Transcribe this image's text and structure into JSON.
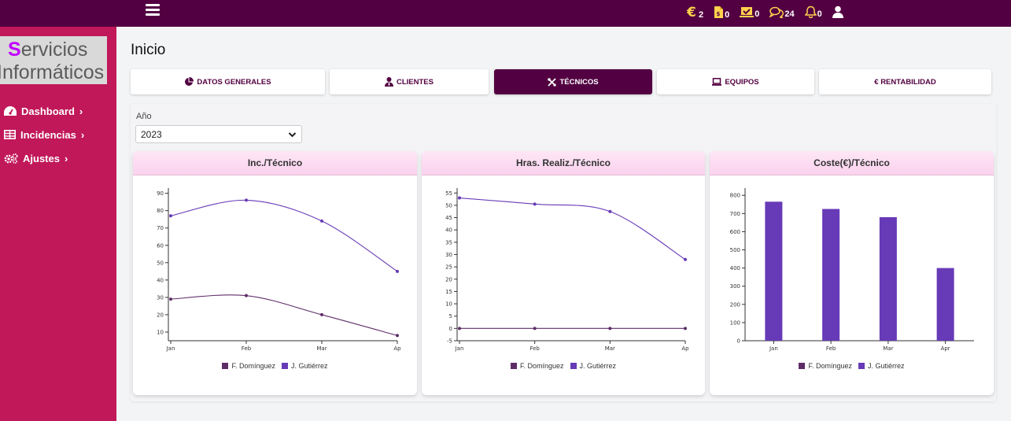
{
  "topbar": {
    "icons": [
      {
        "name": "euro-icon",
        "count": "2"
      },
      {
        "name": "invoice-icon",
        "count": "0"
      },
      {
        "name": "laptop-check-icon",
        "count": "0"
      },
      {
        "name": "comments-icon",
        "count": "24"
      },
      {
        "name": "bell-icon",
        "count": "0"
      },
      {
        "name": "user-icon",
        "count": ""
      }
    ],
    "colors": {
      "background": "#520041",
      "icon": "#ffd34d"
    }
  },
  "logo": {
    "first_letter": "S",
    "line1_rest": "ervicios",
    "line2": "Informáticos"
  },
  "sidebar": {
    "items": [
      {
        "label": "Dashboard",
        "icon": "tachometer-icon"
      },
      {
        "label": "Incidencias",
        "icon": "table-icon"
      },
      {
        "label": "Ajustes",
        "icon": "cogs-icon"
      }
    ],
    "color": "#c1185a"
  },
  "page": {
    "title": "Inicio"
  },
  "tabs": [
    {
      "label": "DATOS GENERALES",
      "icon": "pie-chart-icon",
      "active": false
    },
    {
      "label": "CLIENTES",
      "icon": "user-tie-icon",
      "active": false
    },
    {
      "label": "TÉCNICOS",
      "icon": "tools-icon",
      "active": true
    },
    {
      "label": "EQUIPOS",
      "icon": "laptop-icon",
      "active": false
    },
    {
      "label": "€ RENTABILIDAD",
      "icon": "",
      "active": false
    }
  ],
  "filter": {
    "label": "Año",
    "value": "2023"
  },
  "colors": {
    "series1": "#5e2d68",
    "series2": "#673ab7"
  },
  "chart_data": [
    {
      "type": "line",
      "title": "Inc./Técnico",
      "categories": [
        "Jan",
        "Feb",
        "Mar",
        "Ap"
      ],
      "yticks": [
        10,
        20,
        30,
        40,
        50,
        60,
        70,
        80,
        90
      ],
      "ylim": [
        5,
        93
      ],
      "series": [
        {
          "name": "F. Domínguez",
          "values": [
            29,
            31,
            20,
            8
          ]
        },
        {
          "name": "J. Gutiérrez",
          "values": [
            77,
            86,
            74,
            45
          ]
        }
      ],
      "legend": "bottom"
    },
    {
      "type": "line",
      "title": "Hras. Realiz./Técnico",
      "categories": [
        "Jan",
        "Feb",
        "Mar",
        "Ap"
      ],
      "yticks": [
        -5,
        0,
        5,
        10,
        15,
        20,
        25,
        30,
        35,
        40,
        45,
        50,
        55
      ],
      "ylim": [
        -5,
        57
      ],
      "series": [
        {
          "name": "F. Domínguez",
          "values": [
            0,
            0,
            0,
            0
          ]
        },
        {
          "name": "J. Gutiérrez",
          "values": [
            53,
            50.5,
            47.5,
            28
          ]
        }
      ],
      "legend": "bottom"
    },
    {
      "type": "bar",
      "title": "Coste(€)/Técnico",
      "categories": [
        "Jan",
        "Feb",
        "Mar",
        "Apr"
      ],
      "yticks": [
        0,
        100,
        200,
        300,
        400,
        500,
        600,
        700,
        800
      ],
      "ylim": [
        0,
        840
      ],
      "series": [
        {
          "name": "F. Domínguez",
          "values": [
            0,
            0,
            0,
            0
          ]
        },
        {
          "name": "J. Gutiérrez",
          "values": [
            765,
            725,
            680,
            400
          ]
        }
      ],
      "legend": "bottom"
    }
  ]
}
